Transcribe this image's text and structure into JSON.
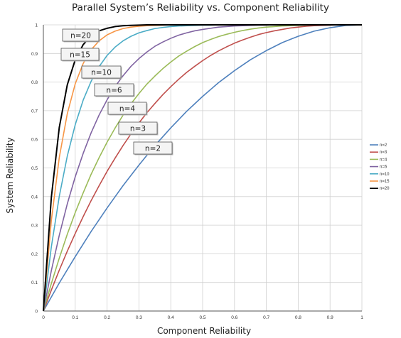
{
  "chart_data": {
    "type": "line",
    "title": "Parallel System’s Reliability vs. Component Reliability",
    "xlabel": "Component Reliability",
    "ylabel": "System Reliability",
    "xlim": [
      0,
      1
    ],
    "ylim": [
      0,
      1
    ],
    "x_ticks": [
      "0",
      "0.1",
      "0.2",
      "0.3",
      "0.4",
      "0.5",
      "0.6",
      "0.7",
      "0.8",
      "0.9",
      "1"
    ],
    "y_ticks": [
      "0",
      "0.1",
      "0.2",
      "0.3",
      "0.4",
      "0.5",
      "0.6",
      "0.7",
      "0.8",
      "0.9",
      "1"
    ],
    "grid": true,
    "legend_position": "right",
    "x": [
      0,
      0.025,
      0.05,
      0.075,
      0.1,
      0.125,
      0.15,
      0.175,
      0.2,
      0.225,
      0.25,
      0.275,
      0.3,
      0.325,
      0.35,
      0.375,
      0.4,
      0.425,
      0.45,
      0.475,
      0.5,
      0.525,
      0.55,
      0.575,
      0.6,
      0.625,
      0.65,
      0.675,
      0.7,
      0.725,
      0.75,
      0.775,
      0.8,
      0.825,
      0.85,
      0.875,
      0.9,
      0.925,
      0.95,
      0.975,
      1
    ],
    "series": [
      {
        "name": "n=2",
        "color": "#4f81bd",
        "values": [
          0,
          0.049,
          0.098,
          0.144,
          0.19,
          0.234,
          0.278,
          0.319,
          0.36,
          0.399,
          0.438,
          0.474,
          0.51,
          0.544,
          0.578,
          0.609,
          0.64,
          0.669,
          0.698,
          0.724,
          0.75,
          0.774,
          0.798,
          0.819,
          0.84,
          0.859,
          0.878,
          0.894,
          0.91,
          0.924,
          0.938,
          0.949,
          0.96,
          0.969,
          0.978,
          0.984,
          0.99,
          0.994,
          0.998,
          0.999,
          1
        ]
      },
      {
        "name": "n=3",
        "color": "#c0504d",
        "values": [
          0,
          0.073,
          0.143,
          0.209,
          0.271,
          0.33,
          0.386,
          0.438,
          0.488,
          0.534,
          0.578,
          0.619,
          0.657,
          0.693,
          0.725,
          0.756,
          0.784,
          0.81,
          0.834,
          0.855,
          0.875,
          0.893,
          0.909,
          0.923,
          0.936,
          0.947,
          0.957,
          0.966,
          0.973,
          0.979,
          0.984,
          0.989,
          0.992,
          0.995,
          0.997,
          0.998,
          0.999,
          1,
          1,
          1,
          1
        ]
      },
      {
        "name": "n=4",
        "color": "#9bbb59",
        "values": [
          0,
          0.096,
          0.185,
          0.268,
          0.344,
          0.413,
          0.478,
          0.536,
          0.59,
          0.639,
          0.684,
          0.724,
          0.76,
          0.793,
          0.821,
          0.847,
          0.87,
          0.891,
          0.908,
          0.924,
          0.938,
          0.949,
          0.959,
          0.967,
          0.974,
          0.98,
          0.985,
          0.989,
          0.992,
          0.994,
          0.996,
          0.997,
          0.998,
          0.999,
          1,
          1,
          1,
          1,
          1,
          1,
          1
        ]
      },
      {
        "name": "n=6",
        "color": "#8064a2",
        "values": [
          0,
          0.141,
          0.265,
          0.374,
          0.469,
          0.551,
          0.623,
          0.685,
          0.738,
          0.784,
          0.822,
          0.855,
          0.882,
          0.905,
          0.925,
          0.94,
          0.953,
          0.964,
          0.972,
          0.979,
          0.984,
          0.988,
          0.992,
          0.994,
          0.996,
          0.997,
          0.998,
          0.999,
          0.999,
          1,
          1,
          1,
          1,
          1,
          1,
          1,
          1,
          1,
          1,
          1,
          1
        ]
      },
      {
        "name": "n=10",
        "color": "#4bacc6",
        "values": [
          0,
          0.224,
          0.401,
          0.541,
          0.651,
          0.737,
          0.803,
          0.854,
          0.893,
          0.922,
          0.944,
          0.96,
          0.972,
          0.98,
          0.987,
          0.991,
          0.994,
          0.996,
          0.997,
          0.998,
          0.999,
          0.999,
          1,
          1,
          1,
          1,
          1,
          1,
          1,
          1,
          1,
          1,
          1,
          1,
          1,
          1,
          1,
          1,
          1,
          1,
          1
        ]
      },
      {
        "name": "n=15",
        "color": "#f79646",
        "values": [
          0,
          0.316,
          0.537,
          0.689,
          0.794,
          0.865,
          0.913,
          0.944,
          0.965,
          0.978,
          0.987,
          0.992,
          0.995,
          0.997,
          0.998,
          0.999,
          1,
          1,
          1,
          1,
          1,
          1,
          1,
          1,
          1,
          1,
          1,
          1,
          1,
          1,
          1,
          1,
          1,
          1,
          1,
          1,
          1,
          1,
          1,
          1,
          1
        ]
      },
      {
        "name": "n=20",
        "color": "#000000",
        "values": [
          0,
          0.397,
          0.642,
          0.79,
          0.878,
          0.931,
          0.961,
          0.979,
          0.988,
          0.994,
          0.997,
          0.998,
          0.999,
          1,
          1,
          1,
          1,
          1,
          1,
          1,
          1,
          1,
          1,
          1,
          1,
          1,
          1,
          1,
          1,
          1,
          1,
          1,
          1,
          1,
          1,
          1,
          1,
          1,
          1,
          1,
          1
        ]
      }
    ],
    "annotations": [
      "n=20",
      "n=15",
      "n=10",
      "n=6",
      "n=4",
      "n=3",
      "n=2"
    ]
  }
}
